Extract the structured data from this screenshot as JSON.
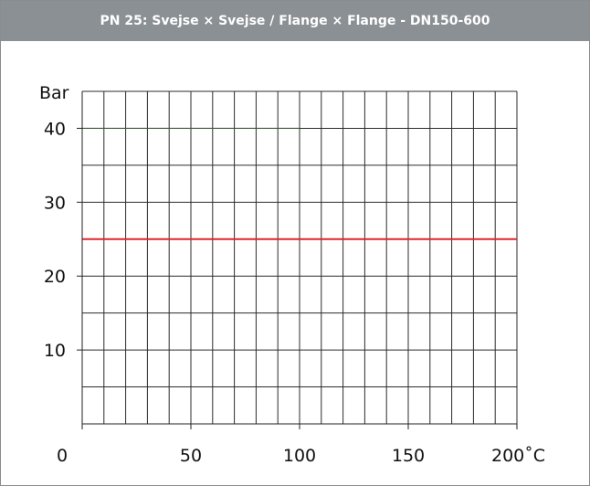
{
  "header": {
    "title": "PN 25:  Svejse × Svejse / Flange × Flange - DN150-600"
  },
  "chart_data": {
    "type": "line",
    "title": "PN 25:  Svejse × Svejse / Flange × Flange - DN150-600",
    "ylabel": "Bar",
    "xlabel": "",
    "x_unit": "˚C",
    "xlim": [
      0,
      200
    ],
    "ylim": [
      0,
      45
    ],
    "x_ticks": [
      0,
      50,
      100,
      150,
      200
    ],
    "x_tick_labels": [
      "0",
      "50",
      "100",
      "150",
      "200˚C"
    ],
    "y_ticks": [
      10,
      20,
      30,
      40
    ],
    "y_tick_labels": [
      "10",
      "20",
      "30",
      "40"
    ],
    "grid": true,
    "grid_x_step": 10,
    "grid_y_step": 5,
    "series": [
      {
        "x": [
          0,
          100
        ],
        "y": [
          40,
          40
        ],
        "color": "#3a5a3a"
      },
      {
        "x": [
          0,
          200
        ],
        "y": [
          25,
          25
        ],
        "color": "#e0262e"
      }
    ]
  }
}
